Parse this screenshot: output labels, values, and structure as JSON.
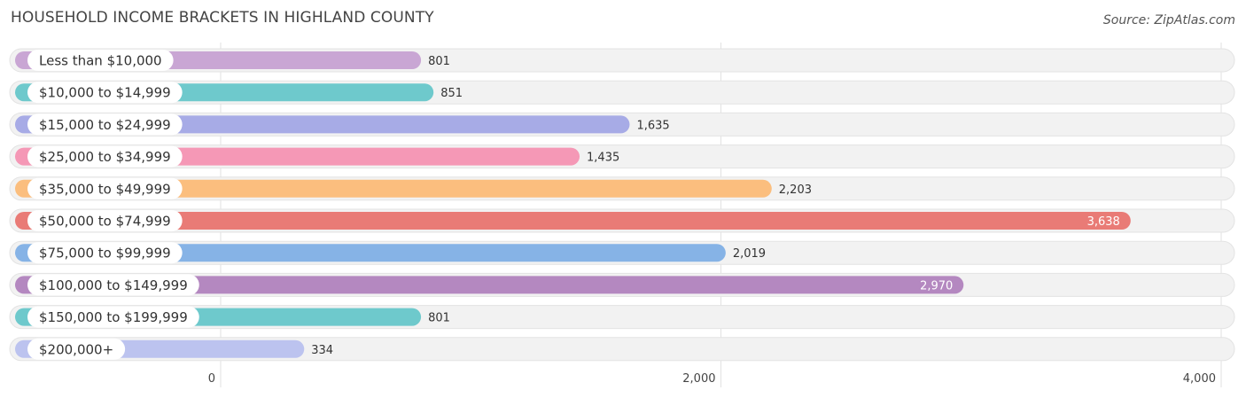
{
  "header": {
    "title": "HOUSEHOLD INCOME BRACKETS IN HIGHLAND COUNTY",
    "source": "Source: ZipAtlas.com"
  },
  "chart_data": {
    "type": "bar",
    "orientation": "horizontal",
    "title": "HOUSEHOLD INCOME BRACKETS IN HIGHLAND COUNTY",
    "xlabel": "",
    "ylabel": "",
    "xlim": [
      0,
      4000
    ],
    "grid": true,
    "ticks": [
      {
        "value": 0,
        "label": "0"
      },
      {
        "value": 2000,
        "label": "2,000"
      },
      {
        "value": 4000,
        "label": "4,000"
      }
    ],
    "categories": [
      "Less than $10,000",
      "$10,000 to $14,999",
      "$15,000 to $24,999",
      "$25,000 to $34,999",
      "$35,000 to $49,999",
      "$50,000 to $74,999",
      "$75,000 to $99,999",
      "$100,000 to $149,999",
      "$150,000 to $199,999",
      "$200,000+"
    ],
    "values": [
      801,
      851,
      1635,
      1435,
      2203,
      3638,
      2019,
      2970,
      801,
      334
    ],
    "value_labels": [
      "801",
      "851",
      "1,635",
      "1,435",
      "2,203",
      "3,638",
      "2,019",
      "2,970",
      "801",
      "334"
    ],
    "colors": [
      "#c9a6d4",
      "#6ec9cc",
      "#a7abe6",
      "#f598b6",
      "#fbbe7e",
      "#e97b76",
      "#86b3e6",
      "#b488c0",
      "#6ec9cc",
      "#bcc3ef"
    ]
  }
}
